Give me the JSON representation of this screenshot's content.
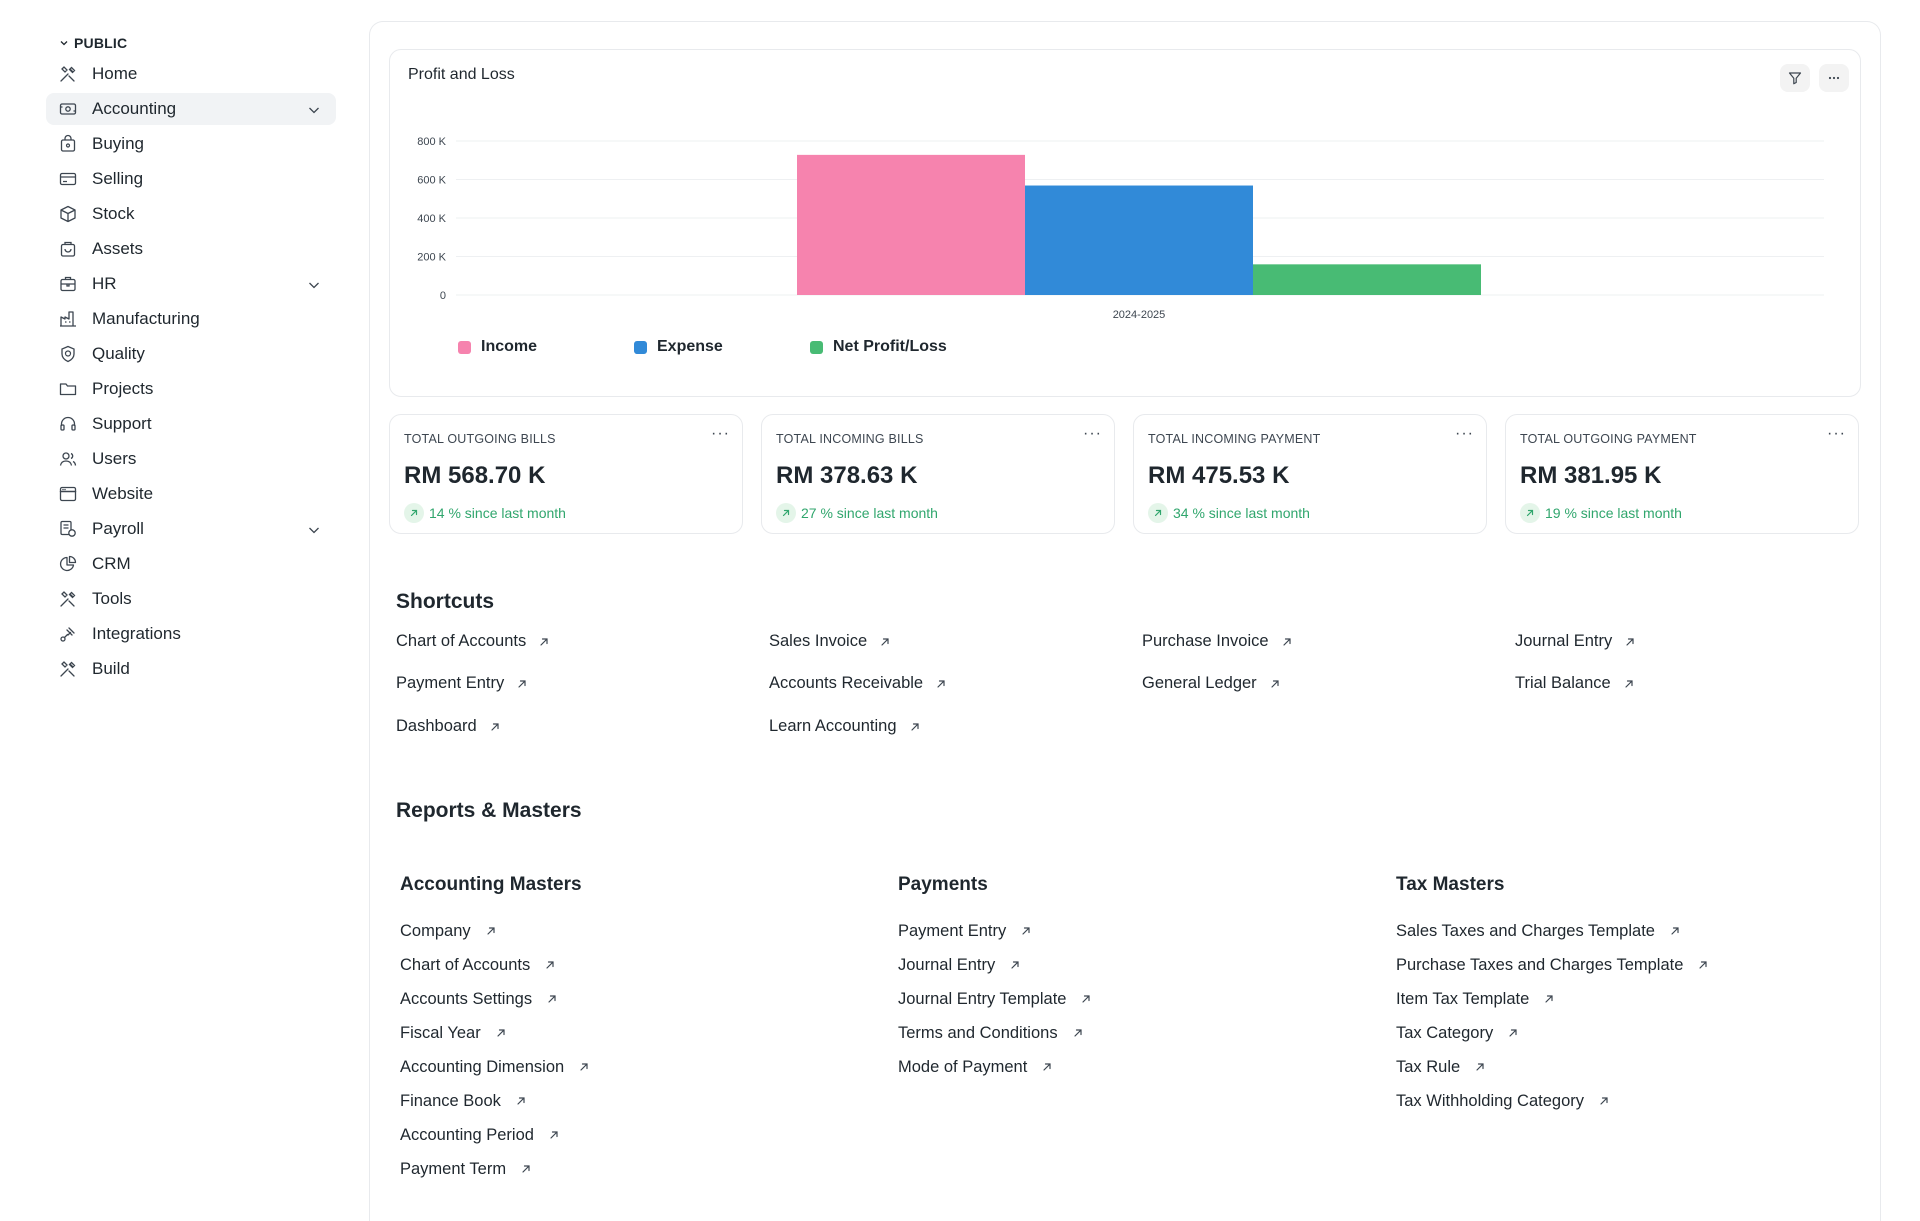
{
  "sidebar": {
    "section": "PUBLIC",
    "items": [
      {
        "label": "Home",
        "icon": "tools-icon"
      },
      {
        "label": "Accounting",
        "icon": "accounting-icon",
        "active": true,
        "expandable": true
      },
      {
        "label": "Buying",
        "icon": "buying-icon"
      },
      {
        "label": "Selling",
        "icon": "selling-icon"
      },
      {
        "label": "Stock",
        "icon": "stock-icon"
      },
      {
        "label": "Assets",
        "icon": "assets-icon"
      },
      {
        "label": "HR",
        "icon": "hr-icon",
        "expandable": true
      },
      {
        "label": "Manufacturing",
        "icon": "manufacturing-icon"
      },
      {
        "label": "Quality",
        "icon": "quality-icon"
      },
      {
        "label": "Projects",
        "icon": "projects-icon"
      },
      {
        "label": "Support",
        "icon": "support-icon"
      },
      {
        "label": "Users",
        "icon": "users-icon"
      },
      {
        "label": "Website",
        "icon": "website-icon"
      },
      {
        "label": "Payroll",
        "icon": "payroll-icon",
        "expandable": true
      },
      {
        "label": "CRM",
        "icon": "crm-icon"
      },
      {
        "label": "Tools",
        "icon": "tools-icon"
      },
      {
        "label": "Integrations",
        "icon": "integrations-icon"
      },
      {
        "label": "Build",
        "icon": "build-icon"
      }
    ]
  },
  "chart_card": {
    "title": "Profit and Loss",
    "filter_icon": "filter-icon",
    "more_icon": "more-icon"
  },
  "chart_data": {
    "type": "bar",
    "categories": [
      "2024-2025"
    ],
    "series": [
      {
        "name": "Income",
        "values": [
          728000
        ],
        "color": "#f683ae"
      },
      {
        "name": "Expense",
        "values": [
          568700
        ],
        "color": "#318ad8"
      },
      {
        "name": "Net Profit/Loss",
        "values": [
          159300
        ],
        "color": "#48bb74"
      }
    ],
    "yticks": [
      "0",
      "200 K",
      "400 K",
      "600 K",
      "800 K"
    ],
    "ylim": [
      0,
      800000
    ],
    "grid": true,
    "legend": "bottom-left"
  },
  "kpis": [
    {
      "label": "TOTAL OUTGOING BILLS",
      "value": "RM 568.70 K",
      "trend": "14 % since last month"
    },
    {
      "label": "TOTAL INCOMING BILLS",
      "value": "RM 378.63 K",
      "trend": "27 % since last month"
    },
    {
      "label": "TOTAL INCOMING PAYMENT",
      "value": "RM 475.53 K",
      "trend": "34 % since last month"
    },
    {
      "label": "TOTAL OUTGOING PAYMENT",
      "value": "RM 381.95 K",
      "trend": "19 % since last month"
    }
  ],
  "kpi_more": "···",
  "shortcuts": {
    "title": "Shortcuts",
    "items": [
      "Chart of Accounts",
      "Sales Invoice",
      "Purchase Invoice",
      "Journal Entry",
      "Payment Entry",
      "Accounts Receivable",
      "General Ledger",
      "Trial Balance",
      "Dashboard",
      "Learn Accounting"
    ]
  },
  "reports": {
    "title": "Reports & Masters",
    "columns": [
      {
        "title": "Accounting Masters",
        "links": [
          "Company",
          "Chart of Accounts",
          "Accounts Settings",
          "Fiscal Year",
          "Accounting Dimension",
          "Finance Book",
          "Accounting Period",
          "Payment Term"
        ]
      },
      {
        "title": "Payments",
        "links": [
          "Payment Entry",
          "Journal Entry",
          "Journal Entry Template",
          "Terms and Conditions",
          "Mode of Payment"
        ]
      },
      {
        "title": "Tax Masters",
        "links": [
          "Sales Taxes and Charges Template",
          "Purchase Taxes and Charges Template",
          "Item Tax Template",
          "Tax Category",
          "Tax Rule",
          "Tax Withholding Category"
        ]
      }
    ]
  }
}
